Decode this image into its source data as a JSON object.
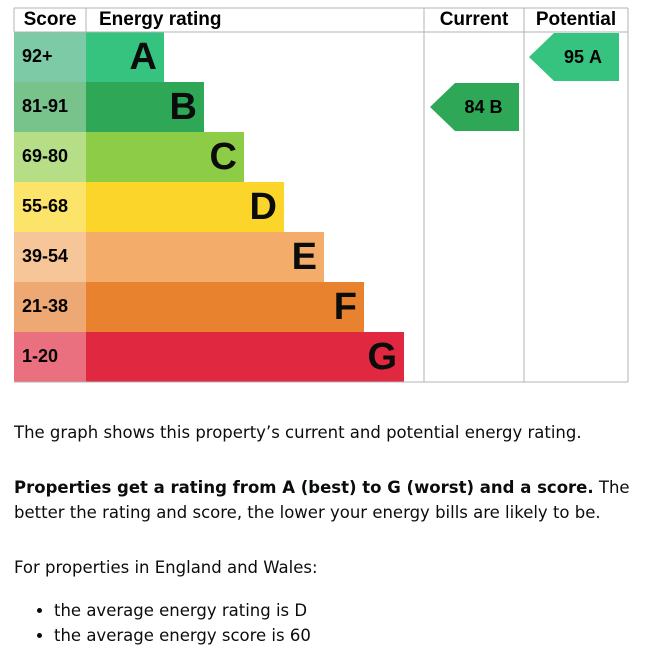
{
  "header": {
    "score": "Score",
    "rating": "Energy rating",
    "current": "Current",
    "potential": "Potential"
  },
  "bands": [
    {
      "range": "92+",
      "letter": "A",
      "color": "#35c37f",
      "light": "#7ccba6"
    },
    {
      "range": "81-91",
      "letter": "B",
      "color": "#2ea756",
      "light": "#78c28c"
    },
    {
      "range": "69-80",
      "letter": "C",
      "color": "#8dcc46",
      "light": "#b6de86"
    },
    {
      "range": "55-68",
      "letter": "D",
      "color": "#fbd52a",
      "light": "#fbe469"
    },
    {
      "range": "39-54",
      "letter": "E",
      "color": "#f4ac6b",
      "light": "#f6c598"
    },
    {
      "range": "21-38",
      "letter": "F",
      "color": "#e8822f",
      "light": "#eea873"
    },
    {
      "range": "1-20",
      "letter": "G",
      "color": "#e02941",
      "light": "#eb707f"
    }
  ],
  "current": {
    "score": 84,
    "rating": "B"
  },
  "potential": {
    "score": 95,
    "rating": "A"
  },
  "text": {
    "summary": "The graph shows this property’s current and potential energy rating.",
    "bold": "Properties get a rating from A (best) to G (worst) and a score.",
    "rest": " The better the rating and score, the lower your energy bills are likely to be.",
    "intro": "For properties in England and Wales:",
    "bullets": [
      "the average energy rating is D",
      "the average energy score is 60"
    ]
  }
}
